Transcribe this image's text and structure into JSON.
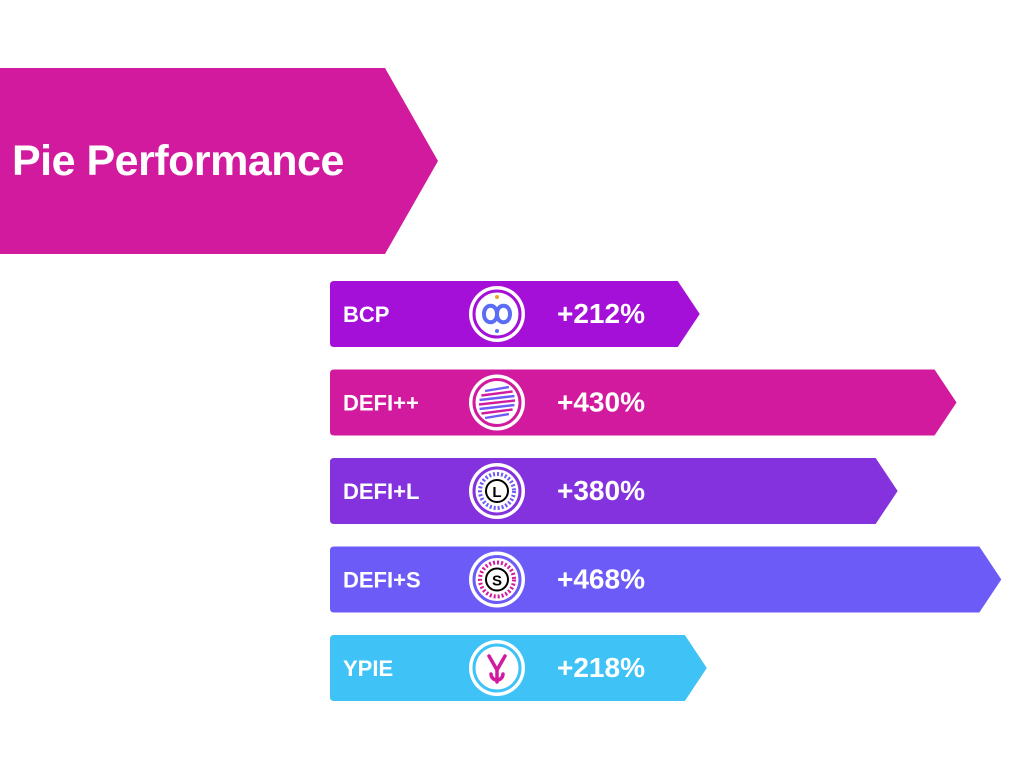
{
  "title": "Pie Performance",
  "colors": {
    "banner": "#d21a9e",
    "text": "#ffffff"
  },
  "chart_data": {
    "type": "bar",
    "orientation": "horizontal",
    "title": "Pie Performance",
    "categories": [
      "BCP",
      "DEFI++",
      "DEFI+L",
      "DEFI+S",
      "YPIE"
    ],
    "values": [
      212,
      430,
      380,
      468,
      218
    ],
    "value_labels": [
      "+212%",
      "+430%",
      "+380%",
      "+468%",
      "+218%"
    ],
    "unit": "%",
    "icons": [
      "bcp-infinity-icon",
      "defi-plus-plus-stripes-icon",
      "defi-plus-l-icon",
      "defi-plus-s-icon",
      "ypie-icon"
    ],
    "icon_letters": [
      "",
      "",
      "L",
      "S",
      ""
    ],
    "colors": [
      "#a510d8",
      "#d21a9e",
      "#8332de",
      "#6d5bf8",
      "#3fc3f6"
    ],
    "grid": false,
    "legend": "none"
  }
}
